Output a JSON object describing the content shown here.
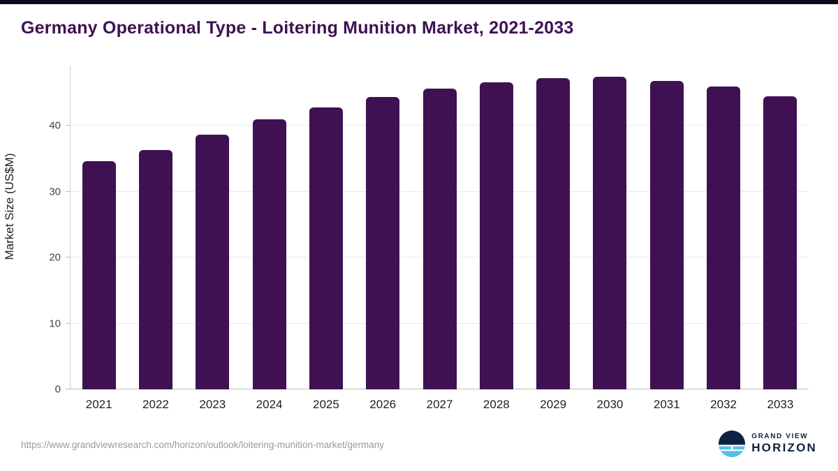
{
  "header": {
    "title": "Germany Operational Type - Loitering Munition Market, 2021-2033"
  },
  "chart_data": {
    "type": "bar",
    "title": "Germany Operational Type - Loitering Munition Market, 2021-2033",
    "categories": [
      "2021",
      "2022",
      "2023",
      "2024",
      "2025",
      "2026",
      "2027",
      "2028",
      "2029",
      "2030",
      "2031",
      "2032",
      "2033"
    ],
    "values": [
      34.6,
      36.3,
      38.6,
      41.0,
      42.8,
      44.3,
      45.6,
      46.6,
      47.2,
      47.4,
      46.8,
      45.9,
      44.5
    ],
    "xlabel": "",
    "ylabel": "Market Size (US$M)",
    "yticks": [
      0,
      10,
      20,
      30,
      40
    ],
    "ylim": [
      0,
      49
    ],
    "grid": true,
    "legend_position": "none",
    "bar_color": "#3f1152"
  },
  "footer": {
    "source_url": "https://www.grandviewresearch.com/horizon/outlook/loitering-munition-market/germany",
    "brand_top": "GRAND VIEW",
    "brand_bottom": "HORIZON"
  },
  "colors": {
    "accent_purple": "#3f1152",
    "top_strip": "#0f0a1e",
    "gridline": "#e8e8e8",
    "axis": "#bdbdbd",
    "logo_navy": "#0d2240",
    "logo_blue": "#4ec3ea",
    "source_text": "#9a9a9a"
  }
}
